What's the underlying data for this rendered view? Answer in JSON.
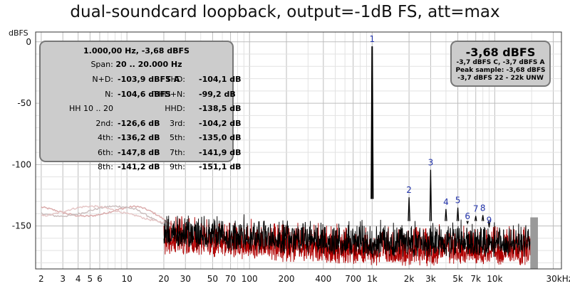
{
  "title": "dual-soundcard loopback, output=-1dB FS, att=max",
  "chart_data": {
    "type": "line",
    "title": "dual-soundcard loopback, output=-1dB FS, att=max",
    "ylabel": "dBFS",
    "xlabel": "",
    "x_scale": "log",
    "xlim": [
      1.8,
      35000
    ],
    "ylim": [
      -185,
      8
    ],
    "grid": true,
    "y_ticks": [
      0,
      -50,
      -100,
      -150
    ],
    "y_tick_labels": [
      "0",
      "-50",
      "-100",
      "-150"
    ],
    "x_ticks": [
      2,
      3,
      4,
      5,
      6,
      10,
      20,
      30,
      50,
      70,
      100,
      200,
      400,
      700,
      1000,
      2000,
      3000,
      5000,
      7000,
      10000,
      30000
    ],
    "x_tick_labels": [
      "2",
      "3",
      "4",
      "5",
      "6",
      "10",
      "20",
      "30",
      "50",
      "70",
      "100",
      "200",
      "400",
      "700",
      "1k",
      "2k",
      "3k",
      "5k",
      "7k",
      "10k",
      "30kHz"
    ],
    "harmonics": [
      {
        "label": "1",
        "freq": 1000,
        "db": -3.68
      },
      {
        "label": "2",
        "freq": 2000,
        "db": -126.6
      },
      {
        "label": "3",
        "freq": 3000,
        "db": -104.2
      },
      {
        "label": "4",
        "freq": 4000,
        "db": -136.2
      },
      {
        "label": "5",
        "freq": 5000,
        "db": -135.0
      },
      {
        "label": "6",
        "freq": 6000,
        "db": -147.8
      },
      {
        "label": "7",
        "freq": 7000,
        "db": -141.9
      },
      {
        "label": "8",
        "freq": 8000,
        "db": -141.2
      },
      {
        "label": "9",
        "freq": 9000,
        "db": -151.1
      }
    ],
    "series": [
      {
        "color": "#000000",
        "noise_floor_db": -150,
        "range_hz": [
          20,
          22000
        ]
      },
      {
        "color": "#b00000",
        "noise_floor_db": -153,
        "range_hz": [
          20,
          22000
        ]
      },
      {
        "color": "#c8b0b0",
        "noise_floor_db": -136,
        "range_hz": [
          2,
          20
        ]
      }
    ]
  },
  "left_box": {
    "header": "1.000,00 Hz, -3,68 dBFS",
    "span_label": "Span:",
    "span_value": "20 .. 20.000 Hz",
    "rows": [
      {
        "l": "N+D:",
        "lv": "-103,9 dBFS A",
        "r": "THD:",
        "rv": "-104,1 dB"
      },
      {
        "l": "N:",
        "lv": "-104,6 dBFS",
        "r": "THD+N:",
        "rv": "-99,2 dB"
      },
      {
        "l": "HH 10 .. 20",
        "lv": "",
        "r": "HHD:",
        "rv": "-138,5 dB"
      },
      {
        "l": "2nd:",
        "lv": "-126,6 dB",
        "r": "3rd:",
        "rv": "-104,2 dB"
      },
      {
        "l": "4th:",
        "lv": "-136,2 dB",
        "r": "5th:",
        "rv": "-135,0 dB"
      },
      {
        "l": "6th:",
        "lv": "-147,8 dB",
        "r": "7th:",
        "rv": "-141,9 dB"
      },
      {
        "l": "8th:",
        "lv": "-141,2 dB",
        "r": "9th:",
        "rv": "-151,1 dB"
      }
    ]
  },
  "right_box": {
    "main": "-3,68 dBFS",
    "line1": "-3,7 dBFS C, -3,7 dBFS A",
    "line2": "Peak sample: -3,68 dBFS",
    "line3": "-3,7 dBFS 22 - 22k UNW"
  },
  "colors": {
    "black_series": "#000000",
    "red_series": "#b00000",
    "pink_series": "#d4a8a8",
    "grid_major": "#bdbdbd",
    "grid_minor": "#e2e2e2",
    "box_bg": "#cccccc"
  }
}
